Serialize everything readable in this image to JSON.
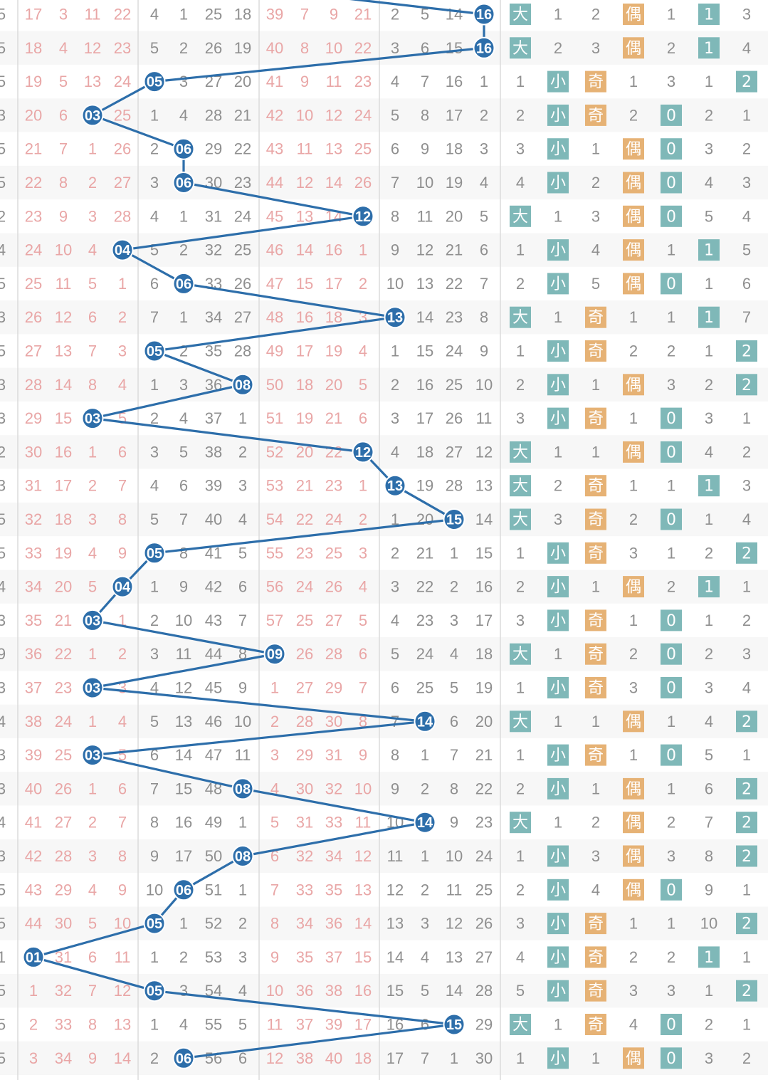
{
  "chart_data": {
    "type": "table",
    "title": "",
    "labels": {
      "big": "大",
      "small": "小",
      "odd": "奇",
      "even": "偶"
    },
    "colors": {
      "ball": "#2d6eaa",
      "line": "#2d6eaa",
      "tag_big_small": "#7fb8b8",
      "tag_odd_even": "#e6b275",
      "pink_text": "#e9a6a6",
      "grey_text": "#8f8f8f"
    },
    "left_edge": [
      "5",
      "5",
      "5",
      "3",
      "5",
      "5",
      "2",
      "4",
      "5",
      "3",
      "5",
      "3",
      "3",
      "2",
      "3",
      "5",
      "5",
      "4",
      "3",
      "9",
      "3",
      "4",
      "3",
      "3",
      "4",
      "3",
      "5",
      "5",
      "1",
      "5",
      "5",
      "5"
    ],
    "rows": [
      {
        "g1": [
          17,
          3,
          11,
          22
        ],
        "g2": [
          4,
          1,
          25,
          18
        ],
        "g3": [
          39,
          7,
          9,
          21
        ],
        "g4": [
          2,
          5,
          14,
          "16"
        ],
        "ds": [
          "大",
          1
        ],
        "oe": [
          2,
          "偶"
        ],
        "a": 1,
        "b": {
          "v": 1,
          "h": true
        },
        "c": {
          "v": 3,
          "h": false
        }
      },
      {
        "g1": [
          18,
          4,
          12,
          23
        ],
        "g2": [
          5,
          2,
          26,
          19
        ],
        "g3": [
          40,
          8,
          10,
          22
        ],
        "g4": [
          3,
          6,
          15,
          "16"
        ],
        "ds": [
          "大",
          2
        ],
        "oe": [
          3,
          "偶"
        ],
        "a": 2,
        "b": {
          "v": 1,
          "h": true
        },
        "c": {
          "v": 4,
          "h": false
        }
      },
      {
        "g1": [
          19,
          5,
          13,
          24
        ],
        "g2": [
          "05",
          3,
          27,
          20
        ],
        "g3": [
          41,
          9,
          11,
          23
        ],
        "g4": [
          4,
          7,
          16,
          1
        ],
        "ds": [
          1,
          "小"
        ],
        "oe": [
          "奇",
          1
        ],
        "a": 3,
        "b": {
          "v": 1,
          "h": false
        },
        "c": {
          "v": 2,
          "h": true
        }
      },
      {
        "g1": [
          20,
          6,
          "03",
          25
        ],
        "g2": [
          1,
          4,
          28,
          21
        ],
        "g3": [
          42,
          10,
          12,
          24
        ],
        "g4": [
          5,
          8,
          17,
          2
        ],
        "ds": [
          2,
          "小"
        ],
        "oe": [
          "奇",
          2
        ],
        "a": 0,
        "b": {
          "v": 2,
          "h": false
        },
        "c": {
          "v": 1,
          "h": false
        }
      },
      {
        "g1": [
          21,
          7,
          1,
          26
        ],
        "g2": [
          2,
          "06",
          29,
          22
        ],
        "g3": [
          43,
          11,
          13,
          25
        ],
        "g4": [
          6,
          9,
          18,
          3
        ],
        "ds": [
          3,
          "小"
        ],
        "oe": [
          1,
          "偶"
        ],
        "a": 0,
        "b": {
          "v": 3,
          "h": false
        },
        "c": {
          "v": 2,
          "h": false
        }
      },
      {
        "g1": [
          22,
          8,
          2,
          27
        ],
        "g2": [
          3,
          "06",
          30,
          23
        ],
        "g3": [
          44,
          12,
          14,
          26
        ],
        "g4": [
          7,
          10,
          19,
          4
        ],
        "ds": [
          4,
          "小"
        ],
        "oe": [
          2,
          "偶"
        ],
        "a": 0,
        "b": {
          "v": 4,
          "h": false
        },
        "c": {
          "v": 3,
          "h": false
        }
      },
      {
        "g1": [
          23,
          9,
          3,
          28
        ],
        "g2": [
          4,
          1,
          31,
          24
        ],
        "g3": [
          45,
          13,
          14,
          "12"
        ],
        "g4": [
          8,
          11,
          20,
          5
        ],
        "ds": [
          "大",
          1
        ],
        "oe": [
          3,
          "偶"
        ],
        "a": 0,
        "b": {
          "v": 5,
          "h": false
        },
        "c": {
          "v": 4,
          "h": false
        }
      },
      {
        "g1": [
          24,
          10,
          4,
          "04"
        ],
        "g2": [
          5,
          2,
          32,
          25
        ],
        "g3": [
          46,
          14,
          16,
          1
        ],
        "g4": [
          9,
          12,
          21,
          6
        ],
        "ds": [
          1,
          "小"
        ],
        "oe": [
          4,
          "偶"
        ],
        "a": 1,
        "b": {
          "v": 1,
          "h": true
        },
        "c": {
          "v": 5,
          "h": false
        }
      },
      {
        "g1": [
          25,
          11,
          5,
          1
        ],
        "g2": [
          6,
          "06",
          33,
          26
        ],
        "g3": [
          47,
          15,
          17,
          2
        ],
        "g4": [
          10,
          13,
          22,
          7
        ],
        "ds": [
          2,
          "小"
        ],
        "oe": [
          5,
          "偶"
        ],
        "a": 0,
        "b": {
          "v": 1,
          "h": false
        },
        "c": {
          "v": 6,
          "h": false
        }
      },
      {
        "g1": [
          26,
          12,
          6,
          2
        ],
        "g2": [
          7,
          1,
          34,
          27
        ],
        "g3": [
          48,
          16,
          18,
          3
        ],
        "g4": [
          "13",
          14,
          23,
          8
        ],
        "ds": [
          "大",
          1
        ],
        "oe": [
          "奇",
          1
        ],
        "a": 1,
        "b": {
          "v": 1,
          "h": true
        },
        "c": {
          "v": 7,
          "h": false
        }
      },
      {
        "g1": [
          27,
          13,
          7,
          3
        ],
        "g2": [
          "05",
          2,
          35,
          28
        ],
        "g3": [
          49,
          17,
          19,
          4
        ],
        "g4": [
          1,
          15,
          24,
          9
        ],
        "ds": [
          1,
          "小"
        ],
        "oe": [
          "奇",
          2
        ],
        "a": 2,
        "b": {
          "v": 1,
          "h": false
        },
        "c": {
          "v": 2,
          "h": true
        }
      },
      {
        "g1": [
          28,
          14,
          8,
          4
        ],
        "g2": [
          1,
          3,
          36,
          "08"
        ],
        "g3": [
          50,
          18,
          20,
          5
        ],
        "g4": [
          2,
          16,
          25,
          10
        ],
        "ds": [
          2,
          "小"
        ],
        "oe": [
          1,
          "偶"
        ],
        "a": 3,
        "b": {
          "v": 2,
          "h": false
        },
        "c": {
          "v": 2,
          "h": true
        }
      },
      {
        "g1": [
          29,
          15,
          "03",
          5
        ],
        "g2": [
          2,
          4,
          37,
          1
        ],
        "g3": [
          51,
          19,
          21,
          6
        ],
        "g4": [
          3,
          17,
          26,
          11
        ],
        "ds": [
          3,
          "小"
        ],
        "oe": [
          "奇",
          1
        ],
        "a": 0,
        "b": {
          "v": 3,
          "h": false
        },
        "c": {
          "v": 1,
          "h": false
        }
      },
      {
        "g1": [
          30,
          16,
          1,
          6
        ],
        "g2": [
          3,
          5,
          38,
          2
        ],
        "g3": [
          52,
          20,
          22,
          "12"
        ],
        "g4": [
          4,
          18,
          27,
          12
        ],
        "ds": [
          "大",
          1
        ],
        "oe": [
          1,
          "偶"
        ],
        "a": 0,
        "b": {
          "v": 4,
          "h": false
        },
        "c": {
          "v": 2,
          "h": false
        }
      },
      {
        "g1": [
          31,
          17,
          2,
          7
        ],
        "g2": [
          4,
          6,
          39,
          3
        ],
        "g3": [
          53,
          21,
          23,
          1
        ],
        "g4": [
          "13",
          19,
          28,
          13
        ],
        "ds": [
          "大",
          2
        ],
        "oe": [
          "奇",
          1
        ],
        "a": 1,
        "b": {
          "v": 1,
          "h": true
        },
        "c": {
          "v": 3,
          "h": false
        }
      },
      {
        "g1": [
          32,
          18,
          3,
          8
        ],
        "g2": [
          5,
          7,
          40,
          4
        ],
        "g3": [
          54,
          22,
          24,
          2
        ],
        "g4": [
          1,
          20,
          "15",
          14
        ],
        "ds": [
          "大",
          3
        ],
        "oe": [
          "奇",
          2
        ],
        "a": 0,
        "b": {
          "v": 1,
          "h": false
        },
        "c": {
          "v": 4,
          "h": false
        }
      },
      {
        "g1": [
          33,
          19,
          4,
          9
        ],
        "g2": [
          "05",
          8,
          41,
          5
        ],
        "g3": [
          55,
          23,
          25,
          3
        ],
        "g4": [
          2,
          21,
          1,
          15
        ],
        "ds": [
          1,
          "小"
        ],
        "oe": [
          "奇",
          3
        ],
        "a": 1,
        "b": {
          "v": 2,
          "h": false
        },
        "c": {
          "v": 2,
          "h": true
        }
      },
      {
        "g1": [
          34,
          20,
          5,
          "04"
        ],
        "g2": [
          1,
          9,
          42,
          6
        ],
        "g3": [
          56,
          24,
          26,
          4
        ],
        "g4": [
          3,
          22,
          2,
          16
        ],
        "ds": [
          2,
          "小"
        ],
        "oe": [
          1,
          "偶"
        ],
        "a": 2,
        "b": {
          "v": 1,
          "h": true
        },
        "c": {
          "v": 1,
          "h": false
        }
      },
      {
        "g1": [
          35,
          21,
          "03",
          1
        ],
        "g2": [
          2,
          10,
          43,
          7
        ],
        "g3": [
          57,
          25,
          27,
          5
        ],
        "g4": [
          4,
          23,
          3,
          17
        ],
        "ds": [
          3,
          "小"
        ],
        "oe": [
          "奇",
          1
        ],
        "a": 0,
        "b": {
          "v": 1,
          "h": false
        },
        "c": {
          "v": 2,
          "h": false
        }
      },
      {
        "g1": [
          36,
          22,
          1,
          2
        ],
        "g2": [
          3,
          11,
          44,
          8
        ],
        "g3": [
          "09",
          26,
          28,
          6
        ],
        "g4": [
          5,
          24,
          4,
          18
        ],
        "ds": [
          "大",
          1
        ],
        "oe": [
          "奇",
          2
        ],
        "a": 0,
        "b": {
          "v": 2,
          "h": false
        },
        "c": {
          "v": 3,
          "h": false
        }
      },
      {
        "g1": [
          37,
          23,
          "03",
          3
        ],
        "g2": [
          4,
          12,
          45,
          9
        ],
        "g3": [
          1,
          27,
          29,
          7
        ],
        "g4": [
          6,
          25,
          5,
          19
        ],
        "ds": [
          1,
          "小"
        ],
        "oe": [
          "奇",
          3
        ],
        "a": 0,
        "b": {
          "v": 3,
          "h": false
        },
        "c": {
          "v": 4,
          "h": false
        }
      },
      {
        "g1": [
          38,
          24,
          1,
          4
        ],
        "g2": [
          5,
          13,
          46,
          10
        ],
        "g3": [
          2,
          28,
          30,
          8
        ],
        "g4": [
          7,
          "14",
          6,
          20
        ],
        "ds": [
          "大",
          1
        ],
        "oe": [
          1,
          "偶"
        ],
        "a": 1,
        "b": {
          "v": 4,
          "h": false
        },
        "c": {
          "v": 2,
          "h": true
        }
      },
      {
        "g1": [
          39,
          25,
          "03",
          5
        ],
        "g2": [
          6,
          14,
          47,
          11
        ],
        "g3": [
          3,
          29,
          31,
          9
        ],
        "g4": [
          8,
          1,
          7,
          21
        ],
        "ds": [
          1,
          "小"
        ],
        "oe": [
          "奇",
          1
        ],
        "a": 0,
        "b": {
          "v": 5,
          "h": false
        },
        "c": {
          "v": 1,
          "h": false
        }
      },
      {
        "g1": [
          40,
          26,
          1,
          6
        ],
        "g2": [
          7,
          15,
          48,
          "08"
        ],
        "g3": [
          4,
          30,
          32,
          10
        ],
        "g4": [
          9,
          2,
          8,
          22
        ],
        "ds": [
          2,
          "小"
        ],
        "oe": [
          1,
          "偶"
        ],
        "a": 1,
        "b": {
          "v": 6,
          "h": false
        },
        "c": {
          "v": 2,
          "h": true
        }
      },
      {
        "g1": [
          41,
          27,
          2,
          7
        ],
        "g2": [
          8,
          16,
          49,
          1
        ],
        "g3": [
          5,
          31,
          33,
          11
        ],
        "g4": [
          10,
          "14",
          9,
          23
        ],
        "ds": [
          "大",
          1
        ],
        "oe": [
          2,
          "偶"
        ],
        "a": 2,
        "b": {
          "v": 7,
          "h": false
        },
        "c": {
          "v": 2,
          "h": true
        }
      },
      {
        "g1": [
          42,
          28,
          3,
          8
        ],
        "g2": [
          9,
          17,
          50,
          "08"
        ],
        "g3": [
          6,
          32,
          34,
          12
        ],
        "g4": [
          11,
          1,
          10,
          24
        ],
        "ds": [
          1,
          "小"
        ],
        "oe": [
          3,
          "偶"
        ],
        "a": 3,
        "b": {
          "v": 8,
          "h": false
        },
        "c": {
          "v": 2,
          "h": true
        }
      },
      {
        "g1": [
          43,
          29,
          4,
          9
        ],
        "g2": [
          10,
          "06",
          51,
          1
        ],
        "g3": [
          7,
          33,
          35,
          13
        ],
        "g4": [
          12,
          2,
          11,
          25
        ],
        "ds": [
          2,
          "小"
        ],
        "oe": [
          4,
          "偶"
        ],
        "a": 0,
        "b": {
          "v": 9,
          "h": false
        },
        "c": {
          "v": 1,
          "h": false
        }
      },
      {
        "g1": [
          44,
          30,
          5,
          10
        ],
        "g2": [
          "05",
          1,
          52,
          2
        ],
        "g3": [
          8,
          34,
          36,
          14
        ],
        "g4": [
          13,
          3,
          12,
          26
        ],
        "ds": [
          3,
          "小"
        ],
        "oe": [
          "奇",
          1
        ],
        "a": 1,
        "b": {
          "v": 10,
          "h": false
        },
        "c": {
          "v": 2,
          "h": true
        }
      },
      {
        "g1": [
          "01",
          31,
          6,
          11
        ],
        "g2": [
          1,
          2,
          53,
          3
        ],
        "g3": [
          9,
          35,
          37,
          15
        ],
        "g4": [
          14,
          4,
          13,
          27
        ],
        "ds": [
          4,
          "小"
        ],
        "oe": [
          "奇",
          2
        ],
        "a": 2,
        "b": {
          "v": 1,
          "h": true
        },
        "c": {
          "v": 1,
          "h": false
        }
      },
      {
        "g1": [
          1,
          32,
          7,
          12
        ],
        "g2": [
          "05",
          3,
          54,
          4
        ],
        "g3": [
          10,
          36,
          38,
          16
        ],
        "g4": [
          15,
          5,
          14,
          28
        ],
        "ds": [
          5,
          "小"
        ],
        "oe": [
          "奇",
          3
        ],
        "a": 3,
        "b": {
          "v": 1,
          "h": false
        },
        "c": {
          "v": 2,
          "h": true
        }
      },
      {
        "g1": [
          2,
          33,
          8,
          13
        ],
        "g2": [
          1,
          4,
          55,
          5
        ],
        "g3": [
          11,
          37,
          39,
          17
        ],
        "g4": [
          16,
          6,
          "15",
          29
        ],
        "ds": [
          "大",
          1
        ],
        "oe": [
          "奇",
          4
        ],
        "a": 0,
        "b": {
          "v": 2,
          "h": false
        },
        "c": {
          "v": 1,
          "h": false
        }
      },
      {
        "g1": [
          3,
          34,
          9,
          14
        ],
        "g2": [
          2,
          "06",
          56,
          6
        ],
        "g3": [
          12,
          38,
          40,
          18
        ],
        "g4": [
          17,
          7,
          1,
          30
        ],
        "ds": [
          1,
          "小"
        ],
        "oe": [
          1,
          "偶"
        ],
        "a": 0,
        "b": {
          "v": 3,
          "h": false
        },
        "c": {
          "v": 2,
          "h": false
        }
      }
    ]
  }
}
